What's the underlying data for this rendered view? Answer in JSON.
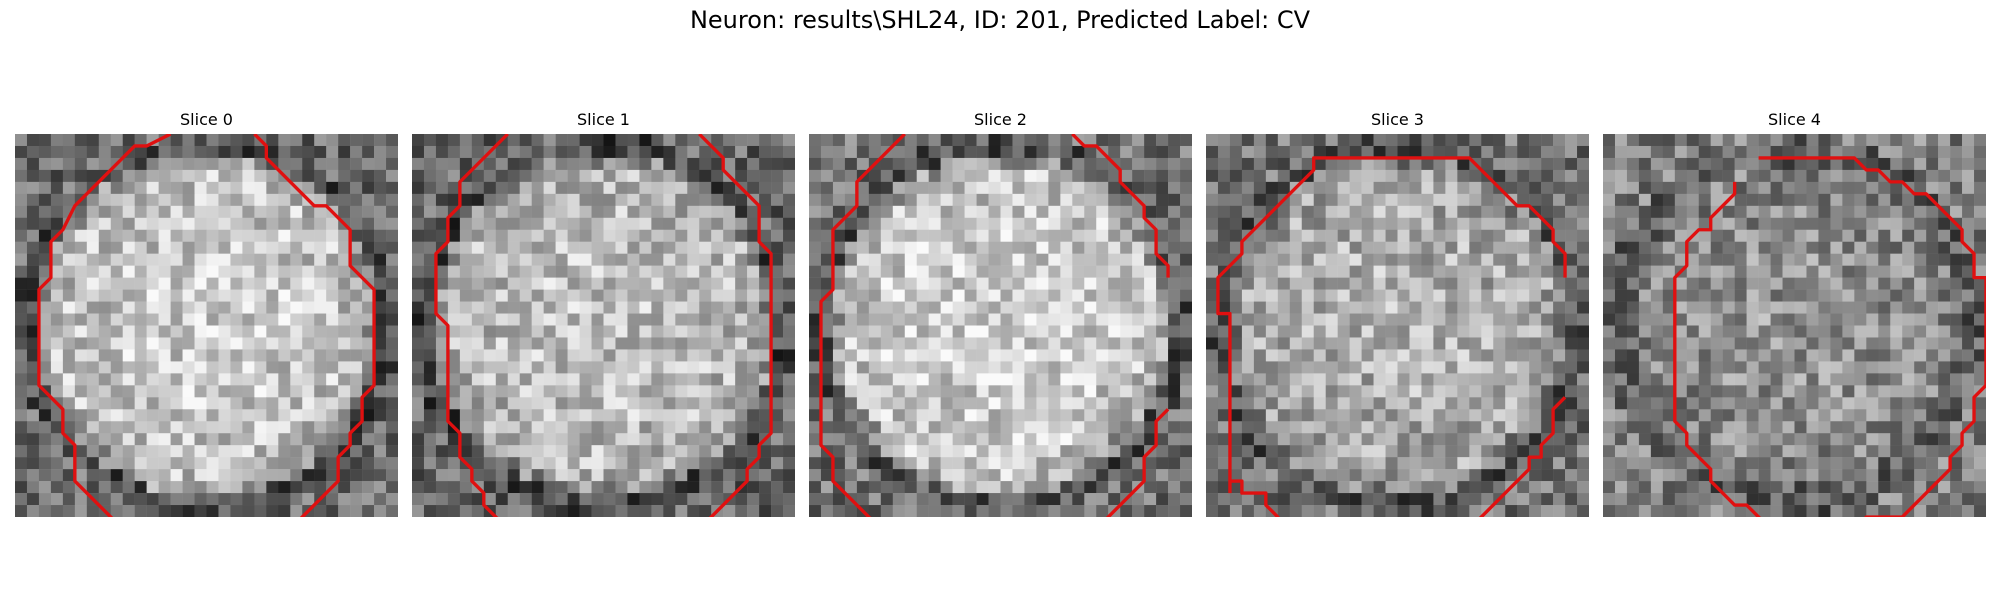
{
  "figure": {
    "title": "Neuron: results\\SHL24, ID: 201, Predicted Label: CV"
  },
  "colors": {
    "contour": "#e01010",
    "background": "#ffffff"
  },
  "panels": [
    {
      "title": "Slice 0",
      "center_brightness": 0.8,
      "edge_brightness": 0.42,
      "contour": [
        [
          12.5,
          -0.5
        ],
        [
          10.5,
          0.5
        ],
        [
          9.5,
          0.5
        ],
        [
          4.5,
          5.5
        ],
        [
          3.5,
          7.5
        ],
        [
          2.5,
          8.5
        ],
        [
          2.5,
          11.5
        ],
        [
          1.5,
          12.5
        ],
        [
          1.5,
          20.5
        ],
        [
          3.5,
          22.5
        ],
        [
          3.5,
          24.5
        ],
        [
          4.5,
          25.5
        ],
        [
          4.5,
          28.5
        ],
        [
          9.5,
          33.5
        ],
        [
          20.5,
          33.5
        ],
        [
          21.5,
          32.5
        ],
        [
          22.5,
          32.5
        ],
        [
          26.5,
          28.5
        ],
        [
          26.5,
          26.5
        ],
        [
          27.5,
          25.5
        ],
        [
          27.5,
          24.5
        ],
        [
          28.5,
          23.5
        ],
        [
          28.5,
          21.5
        ],
        [
          29.5,
          20.5
        ],
        [
          29.5,
          12.5
        ],
        [
          27.5,
          10.5
        ],
        [
          27.5,
          7.5
        ],
        [
          25.5,
          5.5
        ],
        [
          24.5,
          5.5
        ],
        [
          20.5,
          1.5
        ],
        [
          20.5,
          0.5
        ],
        [
          19.5,
          -0.5
        ]
      ]
    },
    {
      "title": "Slice 1",
      "center_brightness": 0.76,
      "edge_brightness": 0.4,
      "contour": [
        [
          7.5,
          -0.5
        ],
        [
          3.5,
          3.5
        ],
        [
          3.5,
          5.5
        ],
        [
          2.5,
          6.5
        ],
        [
          2.5,
          8.5
        ],
        [
          1.5,
          9.5
        ],
        [
          1.5,
          12.5
        ],
        [
          1.5,
          14.5
        ],
        [
          2.5,
          15.5
        ],
        [
          2.5,
          23.5
        ],
        [
          3.5,
          24.5
        ],
        [
          3.5,
          26.5
        ],
        [
          4.5,
          27.5
        ],
        [
          4.5,
          28.5
        ],
        [
          5.5,
          29.5
        ],
        [
          5.5,
          30.5
        ],
        [
          8.5,
          33.5
        ],
        [
          8.5,
          34.5
        ]
      ],
      "contour2": [
        [
          23.5,
          -0.5
        ],
        [
          25.5,
          1.5
        ],
        [
          25.5,
          2.5
        ],
        [
          28.5,
          5.5
        ],
        [
          28.5,
          8.5
        ],
        [
          29.5,
          9.5
        ],
        [
          29.5,
          12.5
        ],
        [
          29.5,
          24.5
        ],
        [
          28.5,
          25.5
        ],
        [
          28.5,
          26.5
        ],
        [
          27.5,
          27.5
        ],
        [
          27.5,
          28.5
        ],
        [
          22.5,
          33.5
        ],
        [
          22.5,
          34.5
        ]
      ]
    },
    {
      "title": "Slice 2",
      "center_brightness": 0.82,
      "edge_brightness": 0.45,
      "contour": [
        [
          7.5,
          -0.5
        ],
        [
          3.5,
          3.5
        ],
        [
          3.5,
          5.5
        ],
        [
          2.5,
          6.5
        ],
        [
          1.5,
          7.5
        ],
        [
          1.5,
          12.5
        ],
        [
          0.5,
          13.5
        ],
        [
          0.5,
          25.5
        ],
        [
          1.5,
          26.5
        ],
        [
          1.5,
          28.5
        ],
        [
          2.5,
          29.5
        ],
        [
          4.5,
          31.5
        ],
        [
          6.5,
          33.5
        ],
        [
          7.5,
          34.5
        ]
      ],
      "contour2": [
        [
          21.5,
          -0.5
        ],
        [
          22.5,
          0.5
        ],
        [
          23.5,
          0.5
        ],
        [
          25.5,
          2.5
        ],
        [
          25.5,
          3.5
        ],
        [
          27.5,
          5.5
        ],
        [
          27.5,
          6.5
        ],
        [
          28.5,
          7.5
        ],
        [
          28.5,
          9.5
        ],
        [
          29.5,
          10.5
        ],
        [
          29.5,
          11.5
        ]
      ],
      "contour3": [
        [
          29.5,
          22.5
        ],
        [
          28.5,
          23.5
        ],
        [
          28.5,
          25.5
        ],
        [
          27.5,
          26.5
        ],
        [
          27.5,
          28.5
        ],
        [
          25.5,
          30.5
        ],
        [
          24.5,
          31.5
        ],
        [
          22.5,
          33.5
        ],
        [
          22.5,
          34.5
        ]
      ]
    },
    {
      "title": "Slice 3",
      "center_brightness": 0.7,
      "edge_brightness": 0.45,
      "contour": [
        [
          1.5,
          29.5
        ],
        [
          1.5,
          27.5
        ],
        [
          1.5,
          20.5
        ],
        [
          1.5,
          14.5
        ],
        [
          0.5,
          14.5
        ],
        [
          0.5,
          11.5
        ],
        [
          2.5,
          9.5
        ],
        [
          2.5,
          8.5
        ],
        [
          4.5,
          6.5
        ],
        [
          5.5,
          5.5
        ],
        [
          6.5,
          4.5
        ],
        [
          7.5,
          3.5
        ],
        [
          8.5,
          2.5
        ],
        [
          8.5,
          1.5
        ],
        [
          21.5,
          1.5
        ],
        [
          22.5,
          2.5
        ],
        [
          23.5,
          3.5
        ],
        [
          24.5,
          4.5
        ],
        [
          25.5,
          5.5
        ],
        [
          26.5,
          5.5
        ],
        [
          27.5,
          6.5
        ],
        [
          28.5,
          7.5
        ],
        [
          28.5,
          8.5
        ],
        [
          28.5,
          8.5
        ],
        [
          29.5,
          9.5
        ],
        [
          29.5,
          10.5
        ],
        [
          29.5,
          11.5
        ]
      ],
      "contour2": [
        [
          29.5,
          21.5
        ],
        [
          28.5,
          22.5
        ],
        [
          28.5,
          24.5
        ],
        [
          27.5,
          25.5
        ],
        [
          27.5,
          26.5
        ],
        [
          26.5,
          26.5
        ],
        [
          26.5,
          27.5
        ],
        [
          20.5,
          33.5
        ],
        [
          19.5,
          33.5
        ],
        [
          18.5,
          34.5
        ]
      ],
      "contour3": [
        [
          1.5,
          28.5
        ],
        [
          2.5,
          28.5
        ],
        [
          2.5,
          29.5
        ],
        [
          4.5,
          29.5
        ],
        [
          4.5,
          30.5
        ],
        [
          5.5,
          31.5
        ],
        [
          6.5,
          33.5
        ],
        [
          8.5,
          34.5
        ]
      ]
    },
    {
      "title": "Slice 4",
      "center_brightness": 0.58,
      "edge_brightness": 0.5,
      "contour": [
        [
          12.5,
          1.5
        ],
        [
          20.5,
          1.5
        ],
        [
          21.5,
          2.5
        ],
        [
          22.5,
          2.5
        ],
        [
          23.5,
          3.5
        ],
        [
          24.5,
          3.5
        ],
        [
          25.5,
          4.5
        ],
        [
          26.5,
          4.5
        ],
        [
          28.5,
          6.5
        ],
        [
          29.5,
          7.5
        ],
        [
          29.5,
          8.5
        ],
        [
          30.5,
          9.5
        ],
        [
          30.5,
          11.5
        ],
        [
          31.5,
          11.5
        ],
        [
          31.5,
          12.5
        ],
        [
          31.5,
          20.5
        ],
        [
          30.5,
          21.5
        ],
        [
          30.5,
          23.5
        ],
        [
          29.5,
          24.5
        ],
        [
          29.5,
          25.5
        ],
        [
          28.5,
          26.5
        ],
        [
          28.5,
          27.5
        ],
        [
          26.5,
          29.5
        ],
        [
          24.5,
          31.5
        ],
        [
          21.5,
          31.5
        ],
        [
          20.5,
          32.5
        ],
        [
          13.5,
          32.5
        ],
        [
          11.5,
          30.5
        ],
        [
          10.5,
          30.5
        ],
        [
          8.5,
          28.5
        ],
        [
          8.5,
          27.5
        ],
        [
          7.5,
          26.5
        ],
        [
          6.5,
          25.5
        ],
        [
          6.5,
          24.5
        ],
        [
          5.5,
          23.5
        ],
        [
          5.5,
          11.5
        ],
        [
          6.5,
          10.5
        ],
        [
          6.5,
          8.5
        ],
        [
          7.5,
          7.5
        ],
        [
          8.5,
          7.5
        ],
        [
          8.5,
          6.5
        ],
        [
          9.5,
          5.5
        ],
        [
          10.5,
          4.5
        ],
        [
          10.5,
          3.5
        ]
      ]
    }
  ]
}
